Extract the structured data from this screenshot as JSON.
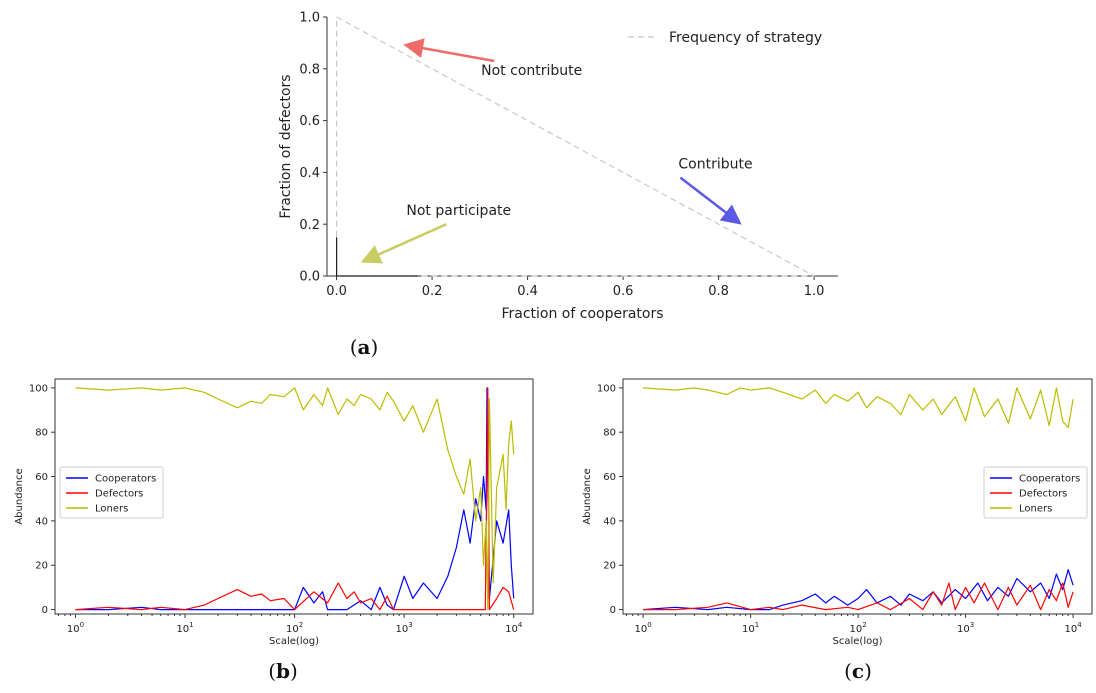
{
  "chart_data": [
    {
      "panel": "a",
      "type": "line",
      "caption": {
        "open": "(",
        "letter": "a",
        "close": ")"
      },
      "xlabel": "Fraction of cooperators",
      "ylabel": "Fraction of defectors",
      "xlim": [
        -0.02,
        1.05
      ],
      "ylim": [
        0,
        1.0
      ],
      "x_ticks": [
        "0.0",
        "0.2",
        "0.4",
        "0.6",
        "0.8",
        "1.0"
      ],
      "y_ticks": [
        "0.0",
        "0.2",
        "0.4",
        "0.6",
        "0.8",
        "1.0"
      ],
      "legend": {
        "position": "top-right",
        "entries": [
          "Frequency of strategy"
        ]
      },
      "series": [
        {
          "name": "Frequency of strategy",
          "color": "#c8c8c8",
          "style": "dashed",
          "x": [
            0,
            1,
            0,
            0
          ],
          "y": [
            1,
            0,
            0,
            1
          ]
        },
        {
          "color": "#222222",
          "style": "solid",
          "x": [
            0,
            0,
            0,
            0.17
          ],
          "y": [
            0.15,
            0,
            0,
            0
          ]
        }
      ],
      "annotations": [
        {
          "text": "Not contribute",
          "color": "#ef6b6b",
          "from": [
            0.33,
            0.83
          ],
          "to": [
            0.15,
            0.89
          ]
        },
        {
          "text": "Contribute",
          "color": "#5a5ae6",
          "from": [
            0.72,
            0.38
          ],
          "to": [
            0.84,
            0.21
          ]
        },
        {
          "text": "Not participate",
          "color": "#c9cc62",
          "from": [
            0.23,
            0.2
          ],
          "to": [
            0.06,
            0.06
          ]
        }
      ]
    },
    {
      "panel": "b",
      "type": "line",
      "caption": {
        "open": "(",
        "letter": "b",
        "close": ")"
      },
      "xlabel": "Scale(log)",
      "ylabel": "Abundance",
      "x_scale": "log",
      "xlim": [
        0.65,
        15000
      ],
      "ylim": [
        -2,
        104
      ],
      "x_ticks": [
        {
          "value": 1,
          "base": "10",
          "exp": "0"
        },
        {
          "value": 10,
          "base": "10",
          "exp": "1"
        },
        {
          "value": 100,
          "base": "10",
          "exp": "2"
        },
        {
          "value": 1000,
          "base": "10",
          "exp": "3"
        },
        {
          "value": 10000,
          "base": "10",
          "exp": "4"
        }
      ],
      "y_ticks": [
        "0",
        "20",
        "40",
        "60",
        "80",
        "100"
      ],
      "legend": {
        "position": "center-left"
      },
      "series": [
        {
          "name": "Cooperators",
          "color": "#0000ff",
          "x": [
            1,
            2,
            4,
            6,
            10,
            20,
            40,
            80,
            100,
            120,
            150,
            180,
            200,
            300,
            400,
            500,
            600,
            700,
            800,
            1000,
            1200,
            1500,
            2000,
            2500,
            3000,
            3500,
            4000,
            4500,
            5000,
            5300,
            5600,
            5700,
            6000,
            7000,
            8000,
            9000,
            9500,
            10000
          ],
          "y": [
            0,
            0,
            1,
            0,
            0,
            0,
            0,
            0,
            0,
            10,
            3,
            8,
            0,
            0,
            4,
            0,
            10,
            2,
            0,
            15,
            5,
            12,
            5,
            15,
            28,
            45,
            30,
            50,
            40,
            60,
            45,
            100,
            5,
            40,
            30,
            45,
            20,
            5
          ]
        },
        {
          "name": "Defectors",
          "color": "#ff0000",
          "x": [
            1,
            2,
            4,
            6,
            10,
            15,
            20,
            30,
            40,
            50,
            60,
            80,
            100,
            150,
            200,
            250,
            300,
            350,
            400,
            500,
            600,
            700,
            800,
            1000,
            1500,
            2000,
            3000,
            4000,
            5000,
            5500,
            5800,
            6000,
            7000,
            8000,
            9000,
            10000
          ],
          "y": [
            0,
            1,
            0,
            1,
            0,
            2,
            5,
            9,
            6,
            7,
            4,
            5,
            0,
            8,
            3,
            12,
            5,
            8,
            3,
            5,
            0,
            6,
            0,
            0,
            0,
            0,
            0,
            0,
            0,
            0,
            100,
            0,
            5,
            10,
            8,
            0
          ]
        },
        {
          "name": "Loners",
          "color": "#bcbc00",
          "x": [
            1,
            2,
            4,
            6,
            10,
            15,
            20,
            30,
            40,
            50,
            60,
            80,
            100,
            120,
            150,
            180,
            200,
            250,
            300,
            350,
            400,
            500,
            600,
            700,
            800,
            1000,
            1200,
            1500,
            2000,
            2500,
            3000,
            3500,
            4000,
            4500,
            5000,
            5300,
            5600,
            5800,
            6000,
            6500,
            7000,
            8000,
            8500,
            9000,
            9500,
            10000
          ],
          "y": [
            100,
            99,
            100,
            99,
            100,
            98,
            95,
            91,
            94,
            93,
            97,
            96,
            100,
            90,
            97,
            92,
            100,
            88,
            95,
            92,
            97,
            95,
            90,
            98,
            94,
            85,
            92,
            80,
            95,
            72,
            60,
            52,
            68,
            40,
            55,
            20,
            40,
            0,
            95,
            12,
            55,
            70,
            45,
            75,
            85,
            70
          ]
        }
      ]
    },
    {
      "panel": "c",
      "type": "line",
      "caption": {
        "open": "(",
        "letter": "c",
        "close": ")"
      },
      "xlabel": "Scale(log)",
      "ylabel": "Abundance",
      "x_scale": "log",
      "xlim": [
        0.65,
        15000
      ],
      "ylim": [
        -2,
        104
      ],
      "x_ticks": [
        {
          "value": 1,
          "base": "10",
          "exp": "0"
        },
        {
          "value": 10,
          "base": "10",
          "exp": "1"
        },
        {
          "value": 100,
          "base": "10",
          "exp": "2"
        },
        {
          "value": 1000,
          "base": "10",
          "exp": "3"
        },
        {
          "value": 10000,
          "base": "10",
          "exp": "4"
        }
      ],
      "y_ticks": [
        "0",
        "20",
        "40",
        "60",
        "80",
        "100"
      ],
      "legend": {
        "position": "center-right"
      },
      "series": [
        {
          "name": "Cooperators",
          "color": "#0000ff",
          "x": [
            1,
            2,
            4,
            6,
            10,
            15,
            20,
            30,
            40,
            50,
            60,
            80,
            100,
            120,
            150,
            200,
            250,
            300,
            400,
            500,
            600,
            800,
            1000,
            1300,
            1600,
            2000,
            2500,
            3000,
            4000,
            5000,
            6000,
            7000,
            8000,
            9000,
            10000
          ],
          "y": [
            0,
            1,
            0,
            1,
            0,
            0,
            2,
            4,
            7,
            3,
            6,
            2,
            5,
            9,
            3,
            6,
            2,
            7,
            4,
            8,
            3,
            9,
            5,
            12,
            4,
            10,
            6,
            14,
            8,
            12,
            5,
            16,
            9,
            18,
            11
          ]
        },
        {
          "name": "Defectors",
          "color": "#ff0000",
          "x": [
            1,
            2,
            4,
            6,
            10,
            15,
            20,
            30,
            50,
            80,
            100,
            150,
            200,
            300,
            400,
            500,
            600,
            700,
            800,
            1000,
            1200,
            1500,
            2000,
            2500,
            3000,
            4000,
            5000,
            6000,
            7000,
            8000,
            9000,
            10000
          ],
          "y": [
            0,
            0,
            1,
            3,
            0,
            1,
            0,
            2,
            0,
            1,
            0,
            3,
            0,
            5,
            0,
            8,
            2,
            12,
            0,
            10,
            3,
            12,
            0,
            10,
            2,
            11,
            0,
            9,
            4,
            12,
            1,
            8
          ]
        },
        {
          "name": "Loners",
          "color": "#bcbc00",
          "x": [
            1,
            2,
            3,
            4,
            6,
            8,
            10,
            15,
            20,
            30,
            40,
            50,
            60,
            80,
            100,
            120,
            150,
            200,
            250,
            300,
            400,
            500,
            600,
            800,
            1000,
            1200,
            1500,
            2000,
            2500,
            3000,
            4000,
            5000,
            6000,
            7000,
            8000,
            9000,
            10000
          ],
          "y": [
            100,
            99,
            100,
            99,
            97,
            100,
            99,
            100,
            98,
            95,
            99,
            93,
            97,
            94,
            98,
            91,
            96,
            93,
            88,
            97,
            90,
            95,
            88,
            96,
            85,
            100,
            87,
            95,
            84,
            100,
            86,
            99,
            83,
            100,
            85,
            82,
            95
          ]
        }
      ]
    }
  ]
}
